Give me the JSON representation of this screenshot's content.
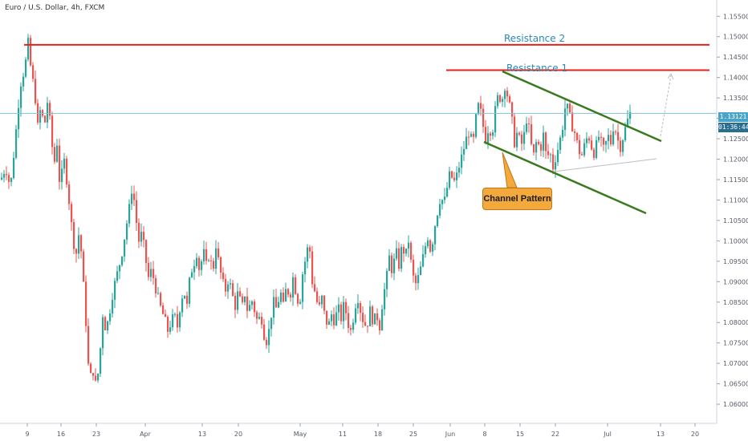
{
  "symbol": "Euro / U.S. Dollar, 4h, FXCM",
  "price_tag": {
    "price": "1.13121",
    "countdown": "01:36:44",
    "color": "#4aa3c8"
  },
  "callout": {
    "label": "Channel Pattern",
    "color": "#f4a93c"
  },
  "colors": {
    "up": "#26a69a",
    "down": "#ef5350",
    "resistance": "#e8201a",
    "channel": "#3a7a1e",
    "label": "#2d86b5"
  },
  "chart_data": {
    "type": "candlestick",
    "ylim": [
      1.0555,
      1.158
    ],
    "ticks": [
      "1.15500",
      "1.15000",
      "1.14500",
      "1.14000",
      "1.13500",
      "1.13000",
      "1.12500",
      "1.12000",
      "1.11500",
      "1.11000",
      "1.10500",
      "1.10000",
      "1.09500",
      "1.09000",
      "1.08500",
      "1.08000",
      "1.07500",
      "1.07000",
      "1.06500",
      "1.06000"
    ],
    "x_labels": [
      "9",
      "16",
      "23",
      "Apr",
      "13",
      "20",
      "May",
      "11",
      "18",
      "25",
      "Jun",
      "8",
      "15",
      "22",
      "Jul",
      "13",
      "20"
    ],
    "resistance": [
      {
        "label": "Resistance 2",
        "price": 1.148
      },
      {
        "label": "Resistance 1",
        "price": 1.1418
      }
    ],
    "current_price": 1.13121,
    "price_path": [
      [
        0,
        1.115
      ],
      [
        6,
        1.118
      ],
      [
        12,
        1.113
      ],
      [
        18,
        1.125
      ],
      [
        24,
        1.138
      ],
      [
        30,
        1.1425
      ],
      [
        34,
        1.1485
      ],
      [
        38,
        1.141
      ],
      [
        42,
        1.137
      ],
      [
        46,
        1.128
      ],
      [
        50,
        1.133
      ],
      [
        54,
        1.1275
      ],
      [
        58,
        1.134
      ],
      [
        62,
        1.128
      ],
      [
        66,
        1.118
      ],
      [
        70,
        1.124
      ],
      [
        74,
        1.112
      ],
      [
        78,
        1.121
      ],
      [
        82,
        1.115
      ],
      [
        86,
        1.108
      ],
      [
        90,
        1.1
      ],
      [
        94,
        1.097
      ],
      [
        98,
        1.103
      ],
      [
        102,
        1.092
      ],
      [
        106,
        1.08
      ],
      [
        110,
        1.066
      ],
      [
        115,
        1.068
      ],
      [
        119,
        1.064
      ],
      [
        123,
        1.071
      ],
      [
        127,
        1.082
      ],
      [
        131,
        1.078
      ],
      [
        135,
        1.082
      ],
      [
        140,
        1.088
      ],
      [
        145,
        1.092
      ],
      [
        150,
        1.096
      ],
      [
        155,
        1.102
      ],
      [
        160,
        1.108
      ],
      [
        164,
        1.114
      ],
      [
        168,
        1.106
      ],
      [
        172,
        1.1
      ],
      [
        176,
        1.102
      ],
      [
        180,
        1.096
      ],
      [
        184,
        1.091
      ],
      [
        188,
        1.093
      ],
      [
        192,
        1.089
      ],
      [
        196,
        1.086
      ],
      [
        200,
        1.083
      ],
      [
        204,
        1.081
      ],
      [
        208,
        1.078
      ],
      [
        212,
        1.08
      ],
      [
        216,
        1.082
      ],
      [
        220,
        1.079
      ],
      [
        224,
        1.085
      ],
      [
        228,
        1.088
      ],
      [
        232,
        1.084
      ],
      [
        236,
        1.092
      ],
      [
        240,
        1.094
      ],
      [
        244,
        1.097
      ],
      [
        248,
        1.092
      ],
      [
        252,
        1.098
      ],
      [
        256,
        1.094
      ],
      [
        260,
        1.097
      ],
      [
        264,
        1.092
      ],
      [
        268,
        1.099
      ],
      [
        272,
        1.094
      ],
      [
        276,
        1.09
      ],
      [
        280,
        1.088
      ],
      [
        284,
        1.091
      ],
      [
        288,
        1.087
      ],
      [
        292,
        1.084
      ],
      [
        296,
        1.088
      ],
      [
        300,
        1.083
      ],
      [
        304,
        1.087
      ],
      [
        308,
        1.082
      ],
      [
        312,
        1.086
      ],
      [
        316,
        1.083
      ],
      [
        320,
        1.08
      ],
      [
        324,
        1.082
      ],
      [
        328,
        1.077
      ],
      [
        332,
        1.075
      ],
      [
        336,
        1.081
      ],
      [
        340,
        1.085
      ],
      [
        344,
        1.083
      ],
      [
        348,
        1.088
      ],
      [
        352,
        1.084
      ],
      [
        356,
        1.089
      ],
      [
        360,
        1.086
      ],
      [
        364,
        1.091
      ],
      [
        368,
        1.087
      ],
      [
        372,
        1.084
      ],
      [
        376,
        1.092
      ],
      [
        380,
        1.096
      ],
      [
        384,
        1.1
      ],
      [
        388,
        1.09
      ],
      [
        392,
        1.087
      ],
      [
        396,
        1.083
      ],
      [
        400,
        1.086
      ],
      [
        404,
        1.081
      ],
      [
        408,
        1.079
      ],
      [
        412,
        1.082
      ],
      [
        416,
        1.08
      ],
      [
        420,
        1.084
      ],
      [
        424,
        1.081
      ],
      [
        428,
        1.085
      ],
      [
        432,
        1.08
      ],
      [
        436,
        1.078
      ],
      [
        440,
        1.082
      ],
      [
        444,
        1.087
      ],
      [
        448,
        1.083
      ],
      [
        452,
        1.08
      ],
      [
        456,
        1.079
      ],
      [
        460,
        1.083
      ],
      [
        464,
        1.08
      ],
      [
        468,
        1.082
      ],
      [
        472,
        1.079
      ],
      [
        476,
        1.086
      ],
      [
        480,
        1.09
      ],
      [
        484,
        1.096
      ],
      [
        488,
        1.092
      ],
      [
        492,
        1.098
      ],
      [
        496,
        1.094
      ],
      [
        500,
        1.099
      ],
      [
        504,
        1.096
      ],
      [
        508,
        1.1
      ],
      [
        512,
        1.093
      ],
      [
        516,
        1.089
      ],
      [
        520,
        1.091
      ],
      [
        524,
        1.094
      ],
      [
        528,
        1.098
      ],
      [
        532,
        1.101
      ],
      [
        536,
        1.097
      ],
      [
        540,
        1.103
      ],
      [
        544,
        1.107
      ],
      [
        548,
        1.111
      ],
      [
        552,
        1.109
      ],
      [
        556,
        1.113
      ],
      [
        560,
        1.117
      ],
      [
        564,
        1.114
      ],
      [
        568,
        1.116
      ],
      [
        572,
        1.119
      ],
      [
        576,
        1.122
      ],
      [
        580,
        1.125
      ],
      [
        584,
        1.127
      ],
      [
        588,
        1.123
      ],
      [
        592,
        1.13
      ],
      [
        596,
        1.134
      ],
      [
        600,
        1.129
      ],
      [
        604,
        1.125
      ],
      [
        608,
        1.128
      ],
      [
        612,
        1.126
      ],
      [
        616,
        1.132
      ],
      [
        620,
        1.136
      ],
      [
        624,
        1.134
      ],
      [
        628,
        1.138
      ],
      [
        632,
        1.135
      ],
      [
        636,
        1.131
      ],
      [
        640,
        1.124
      ],
      [
        644,
        1.127
      ],
      [
        648,
        1.123
      ],
      [
        652,
        1.126
      ],
      [
        656,
        1.131
      ],
      [
        660,
        1.124
      ],
      [
        664,
        1.121
      ],
      [
        668,
        1.125
      ],
      [
        672,
        1.122
      ],
      [
        676,
        1.126
      ],
      [
        680,
        1.12
      ],
      [
        684,
        1.122
      ],
      [
        688,
        1.118
      ],
      [
        692,
        1.121
      ],
      [
        696,
        1.124
      ],
      [
        700,
        1.128
      ],
      [
        704,
        1.134
      ],
      [
        708,
        1.131
      ],
      [
        712,
        1.128
      ],
      [
        716,
        1.126
      ],
      [
        720,
        1.122
      ],
      [
        724,
        1.121
      ],
      [
        728,
        1.124
      ],
      [
        732,
        1.126
      ],
      [
        736,
        1.123
      ],
      [
        740,
        1.121
      ],
      [
        744,
        1.126
      ],
      [
        748,
        1.124
      ],
      [
        752,
        1.122
      ],
      [
        756,
        1.126
      ],
      [
        760,
        1.124
      ],
      [
        764,
        1.129
      ],
      [
        768,
        1.125
      ],
      [
        772,
        1.123
      ],
      [
        776,
        1.126
      ],
      [
        780,
        1.129
      ],
      [
        784,
        1.1312
      ]
    ]
  }
}
